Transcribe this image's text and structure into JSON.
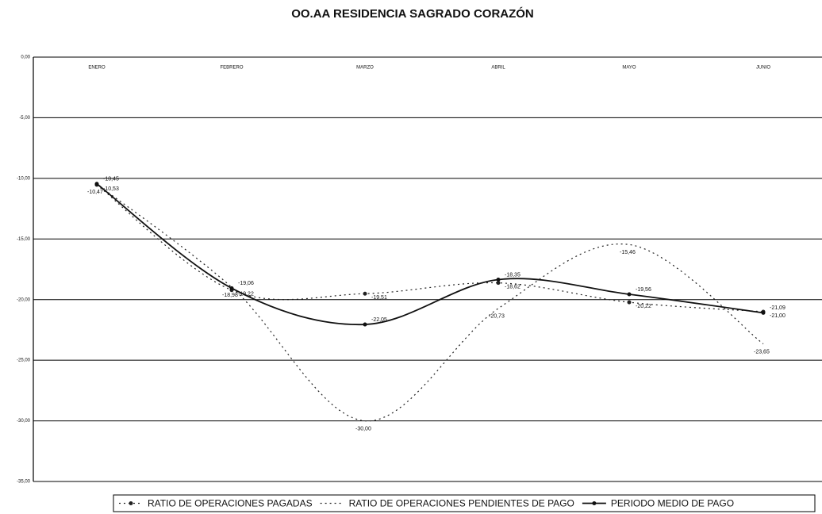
{
  "chart_data": {
    "type": "line",
    "title": "OO.AA RESIDENCIA SAGRADO CORAZÓN",
    "categories": [
      "ENERO",
      "FEBRERO",
      "MARZO",
      "ABRIL",
      "MAYO",
      "JUNIO"
    ],
    "ylim": [
      -35,
      0
    ],
    "yticks": [
      {
        "value": 0,
        "label": "0,00"
      },
      {
        "value": -5,
        "label": "-5,00"
      },
      {
        "value": -10,
        "label": "-10,00"
      },
      {
        "value": -15,
        "label": "-15,00"
      },
      {
        "value": -20,
        "label": "-20,00"
      },
      {
        "value": -25,
        "label": "-25,00"
      },
      {
        "value": -30,
        "label": "-30,00"
      },
      {
        "value": -35,
        "label": "-35,00"
      }
    ],
    "grid": true,
    "legend": "bottom",
    "series": [
      {
        "name": "RATIO DE OPERACIONES PAGADAS",
        "color": "#222222",
        "style": "dotted",
        "markers": true,
        "values": [
          -10.53,
          -19.22,
          -19.51,
          -18.62,
          -20.22,
          -21.0
        ],
        "value_labels": [
          "-10,53",
          "-19,22",
          "-19,51",
          "-18,62",
          "-20,22",
          "-21,00"
        ]
      },
      {
        "name": "RATIO DE OPERACIONES PENDIENTES DE PAGO",
        "color": "#222222",
        "style": "dotted",
        "markers": false,
        "values": [
          -10.47,
          -18.98,
          -30.0,
          -20.73,
          -15.46,
          -23.65
        ],
        "value_labels": [
          "-10,47",
          "-18,98",
          "-30,00",
          "-20,73",
          "-15,46",
          "-23,65"
        ]
      },
      {
        "name": "PERIODO MEDIO DE PAGO",
        "color": "#111111",
        "style": "solid",
        "markers": true,
        "values": [
          -10.45,
          -19.06,
          -22.05,
          -18.35,
          -19.56,
          -21.09
        ],
        "value_labels": [
          "-10,45",
          "-19,06",
          "-22,05",
          "-18,35",
          "-19,56",
          "-21,09"
        ]
      }
    ]
  }
}
